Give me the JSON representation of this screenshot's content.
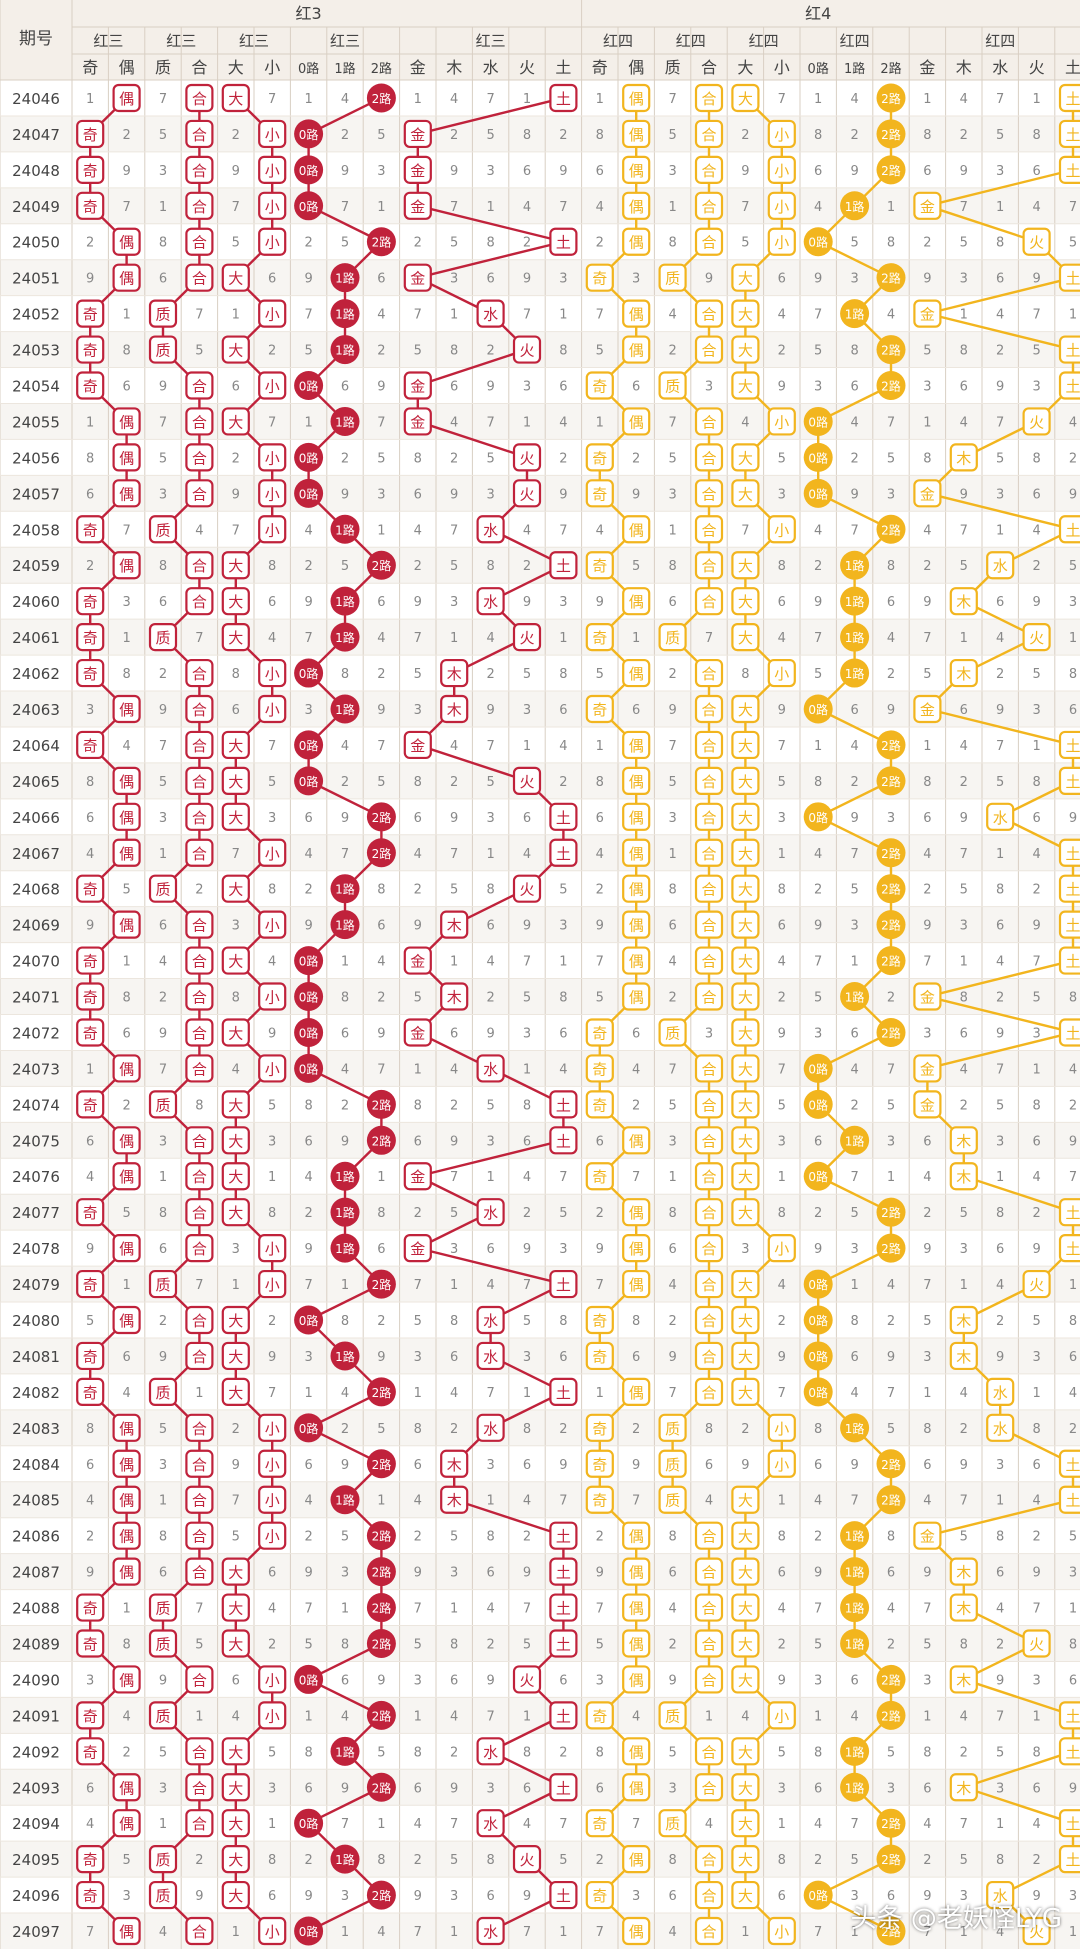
{
  "header": {
    "period_label": "期号",
    "group_titles": [
      "红3",
      "红4"
    ],
    "sub_titles": [
      "红三",
      "红三",
      "红三",
      "红三",
      "红三",
      "红四",
      "红四",
      "红四",
      "红四",
      "红四"
    ],
    "col_labels": [
      "奇",
      "偶",
      "质",
      "合",
      "大",
      "小",
      "0路",
      "1路",
      "2路",
      "金",
      "木",
      "水",
      "火",
      "土",
      "奇",
      "偶",
      "质",
      "合",
      "大",
      "小",
      "0路",
      "1路",
      "2路",
      "金",
      "木",
      "水",
      "火",
      "土"
    ]
  },
  "colors": {
    "red": "#c0223b",
    "yellow": "#f2b51e",
    "grid": "#d9cfc3",
    "header_bg": "#f4efe9",
    "text": "#444444",
    "miss": "#888888"
  },
  "watermark": "头条 @老妖怪LYG",
  "rows": [
    {
      "p": "24046",
      "v": [
        0,
        1,
        0,
        1,
        1,
        1,
        0,
        0,
        1,
        0,
        0,
        0,
        0,
        1,
        0,
        1,
        0,
        1,
        1,
        1,
        0,
        0,
        1,
        0,
        0,
        0,
        0,
        1
      ]
    },
    {
      "p": "24047",
      "h": [
        0,
        1,
        1,
        0,
        0,
        0,
        2
      ],
      "y": [
        1,
        1,
        1,
        0,
        2,
        4
      ]
    },
    {
      "p": "24048",
      "h": [
        0,
        1,
        1,
        0,
        0,
        0,
        2
      ],
      "y": [
        1,
        1,
        1,
        0,
        2,
        4
      ]
    },
    {
      "p": "24049",
      "h": [
        0,
        1,
        1,
        1,
        0,
        0,
        2
      ],
      "y": [
        1,
        1,
        1,
        1,
        1,
        0
      ]
    },
    {
      "p": "24050",
      "h": [
        1,
        1,
        1,
        1,
        2,
        4,
        2
      ],
      "y": [
        1,
        1,
        1,
        0,
        0,
        3
      ]
    },
    {
      "p": "24051",
      "h": [
        1,
        1,
        0,
        1,
        1,
        0,
        2
      ],
      "y": [
        0,
        0,
        0,
        0,
        2,
        4
      ]
    },
    {
      "p": "24052",
      "h": [
        0,
        0,
        1,
        1,
        1,
        2,
        2
      ],
      "y": [
        1,
        1,
        0,
        0,
        1,
        0
      ]
    },
    {
      "p": "24053",
      "h": [
        0,
        0,
        0,
        0,
        1,
        3,
        2
      ],
      "y": [
        1,
        1,
        0,
        0,
        2,
        4
      ]
    },
    {
      "p": "24054",
      "h": [
        0,
        1,
        1,
        1,
        0,
        0,
        2
      ],
      "y": [
        0,
        0,
        0,
        1,
        2,
        4
      ]
    },
    {
      "p": "24055",
      "h": [
        1,
        1,
        0,
        1,
        1,
        0,
        2
      ],
      "y": [
        1,
        1,
        1,
        0,
        0,
        3
      ]
    },
    {
      "p": "24056",
      "h": [
        1,
        1,
        1,
        1,
        0,
        3,
        2
      ],
      "y": [
        0,
        1,
        0,
        0,
        0,
        1
      ]
    },
    {
      "p": "24057",
      "h": [
        1,
        1,
        1,
        1,
        0,
        3,
        2
      ],
      "y": [
        0,
        1,
        0,
        0,
        0,
        0
      ]
    },
    {
      "p": "24058",
      "h": [
        0,
        0,
        1,
        1,
        1,
        2,
        2
      ],
      "y": [
        1,
        1,
        1,
        0,
        2,
        4
      ]
    },
    {
      "p": "24059",
      "h": [
        1,
        1,
        0,
        1,
        2,
        4,
        2
      ],
      "y": [
        0,
        1,
        0,
        0,
        1,
        2
      ]
    },
    {
      "p": "24060",
      "h": [
        0,
        1,
        0,
        1,
        1,
        2,
        2
      ],
      "y": [
        1,
        1,
        0,
        0,
        1,
        1
      ]
    },
    {
      "p": "24061",
      "h": [
        0,
        0,
        0,
        1,
        1,
        3,
        2
      ],
      "y": [
        0,
        0,
        0,
        0,
        1,
        3
      ]
    },
    {
      "p": "24062",
      "h": [
        0,
        1,
        1,
        1,
        0,
        1,
        2
      ],
      "y": [
        1,
        1,
        1,
        0,
        1,
        1
      ]
    },
    {
      "p": "24063",
      "h": [
        1,
        1,
        1,
        1,
        1,
        1,
        2
      ],
      "y": [
        0,
        1,
        0,
        0,
        0,
        0
      ]
    },
    {
      "p": "24064",
      "h": [
        0,
        1,
        0,
        1,
        0,
        0,
        2
      ],
      "y": [
        1,
        1,
        0,
        0,
        2,
        4
      ]
    },
    {
      "p": "24065",
      "h": [
        1,
        1,
        0,
        1,
        0,
        3,
        2
      ],
      "y": [
        1,
        1,
        0,
        0,
        2,
        4
      ]
    },
    {
      "p": "24066",
      "h": [
        1,
        1,
        0,
        0,
        2,
        4,
        2
      ],
      "y": [
        1,
        1,
        0,
        0,
        0,
        2
      ]
    },
    {
      "p": "24067",
      "h": [
        1,
        1,
        1,
        1,
        2,
        4,
        2
      ],
      "y": [
        1,
        1,
        0,
        0,
        2,
        4
      ]
    },
    {
      "p": "24068",
      "h": [
        0,
        0,
        0,
        1,
        1,
        3,
        2
      ],
      "y": [
        1,
        1,
        0,
        0,
        2,
        4
      ]
    },
    {
      "p": "24069",
      "h": [
        1,
        1,
        1,
        1,
        1,
        1,
        2
      ],
      "y": [
        1,
        1,
        0,
        0,
        2,
        4
      ]
    },
    {
      "p": "24070",
      "h": [
        0,
        1,
        0,
        1,
        0,
        0,
        2
      ],
      "y": [
        1,
        1,
        0,
        0,
        2,
        4
      ]
    },
    {
      "p": "24071",
      "h": [
        0,
        1,
        1,
        1,
        0,
        1,
        2
      ],
      "y": [
        1,
        1,
        0,
        0,
        1,
        0
      ]
    },
    {
      "p": "24072",
      "h": [
        0,
        1,
        0,
        1,
        0,
        0,
        2
      ],
      "y": [
        0,
        0,
        0,
        0,
        2,
        4
      ]
    },
    {
      "p": "24073",
      "h": [
        1,
        1,
        1,
        1,
        0,
        2,
        2
      ],
      "y": [
        0,
        1,
        0,
        0,
        0,
        0
      ]
    },
    {
      "p": "24074",
      "h": [
        0,
        0,
        0,
        1,
        2,
        4,
        2
      ],
      "y": [
        0,
        1,
        0,
        0,
        0,
        0
      ]
    },
    {
      "p": "24075",
      "h": [
        1,
        1,
        0,
        1,
        2,
        4,
        2
      ],
      "y": [
        1,
        1,
        0,
        0,
        1,
        1
      ]
    },
    {
      "p": "24076",
      "h": [
        1,
        1,
        0,
        1,
        1,
        0,
        2
      ],
      "y": [
        0,
        1,
        0,
        0,
        0,
        1
      ]
    },
    {
      "p": "24077",
      "h": [
        0,
        1,
        0,
        1,
        1,
        2,
        2
      ],
      "y": [
        1,
        1,
        0,
        0,
        2,
        4
      ]
    },
    {
      "p": "24078",
      "h": [
        1,
        1,
        1,
        1,
        1,
        0,
        2
      ],
      "y": [
        1,
        1,
        1,
        1,
        2,
        4
      ]
    },
    {
      "p": "24079",
      "h": [
        0,
        0,
        1,
        1,
        2,
        4,
        2
      ],
      "y": [
        1,
        1,
        0,
        0,
        0,
        3
      ]
    },
    {
      "p": "24080",
      "h": [
        1,
        1,
        0,
        1,
        0,
        2,
        2
      ],
      "y": [
        0,
        1,
        0,
        0,
        0,
        1
      ]
    },
    {
      "p": "24081",
      "h": [
        0,
        1,
        0,
        1,
        1,
        2,
        2
      ],
      "y": [
        0,
        1,
        0,
        0,
        0,
        1
      ]
    },
    {
      "p": "24082",
      "h": [
        0,
        0,
        0,
        1,
        2,
        4,
        2
      ],
      "y": [
        1,
        1,
        0,
        0,
        0,
        2
      ]
    },
    {
      "p": "24083",
      "h": [
        1,
        1,
        1,
        1,
        0,
        2,
        2
      ],
      "y": [
        0,
        0,
        1,
        1,
        1,
        2
      ]
    },
    {
      "p": "24084",
      "h": [
        1,
        1,
        1,
        1,
        2,
        1,
        2
      ],
      "y": [
        0,
        0,
        1,
        1,
        2,
        4
      ]
    },
    {
      "p": "24085",
      "h": [
        1,
        1,
        1,
        1,
        1,
        1,
        2
      ],
      "y": [
        0,
        0,
        0,
        0,
        2,
        4
      ]
    },
    {
      "p": "24086",
      "h": [
        1,
        1,
        1,
        1,
        2,
        4,
        2
      ],
      "y": [
        1,
        1,
        0,
        0,
        1,
        0
      ]
    },
    {
      "p": "24087",
      "h": [
        1,
        1,
        0,
        1,
        2,
        4,
        2
      ],
      "y": [
        1,
        1,
        0,
        0,
        1,
        1
      ]
    },
    {
      "p": "24088",
      "h": [
        0,
        0,
        0,
        1,
        2,
        4,
        2
      ],
      "y": [
        1,
        1,
        0,
        0,
        1,
        1
      ]
    },
    {
      "p": "24089",
      "h": [
        0,
        0,
        0,
        1,
        2,
        4,
        2
      ],
      "y": [
        1,
        1,
        0,
        0,
        1,
        3
      ]
    },
    {
      "p": "24090",
      "h": [
        1,
        1,
        1,
        1,
        0,
        3,
        2
      ],
      "y": [
        1,
        1,
        0,
        0,
        2,
        1
      ]
    },
    {
      "p": "24091",
      "h": [
        0,
        0,
        1,
        1,
        2,
        4,
        2
      ],
      "y": [
        0,
        0,
        1,
        1,
        2,
        4
      ]
    },
    {
      "p": "24092",
      "h": [
        0,
        1,
        0,
        1,
        1,
        2,
        2
      ],
      "y": [
        1,
        1,
        0,
        0,
        1,
        4
      ]
    },
    {
      "p": "24093",
      "h": [
        1,
        1,
        0,
        1,
        2,
        4,
        2
      ],
      "y": [
        1,
        1,
        0,
        0,
        1,
        1
      ]
    },
    {
      "p": "24094",
      "h": [
        1,
        1,
        0,
        0,
        0,
        2,
        2
      ],
      "y": [
        0,
        0,
        0,
        0,
        2,
        4
      ]
    },
    {
      "p": "24095",
      "h": [
        0,
        0,
        0,
        1,
        1,
        3,
        2
      ],
      "y": [
        1,
        1,
        0,
        0,
        2,
        4
      ]
    },
    {
      "p": "24096",
      "h": [
        0,
        0,
        0,
        1,
        2,
        4,
        2
      ],
      "y": [
        0,
        1,
        0,
        0,
        0,
        2
      ]
    },
    {
      "p": "24097",
      "h": [
        1,
        1,
        1,
        1,
        0,
        2,
        2
      ],
      "y": [
        1,
        1,
        1,
        1,
        2,
        3
      ]
    }
  ]
}
